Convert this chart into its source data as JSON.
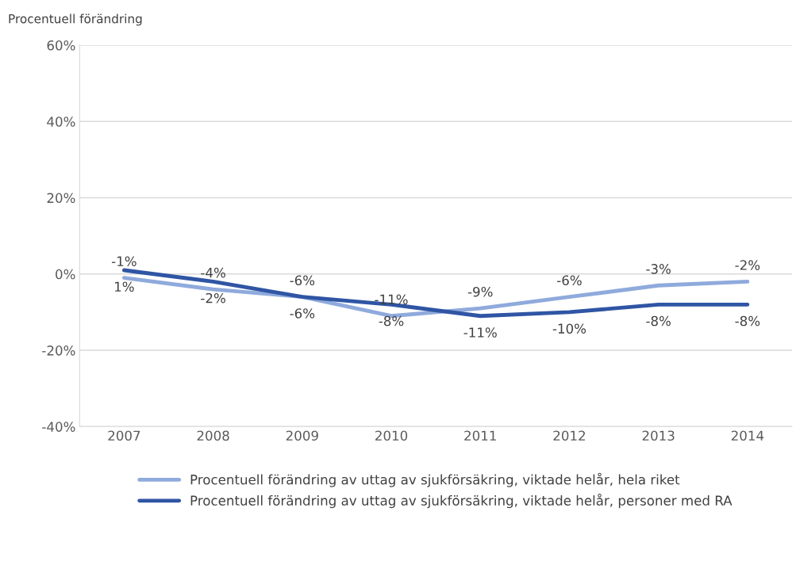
{
  "chart_data": {
    "type": "line",
    "ylabel": "Procentuell förändring",
    "categories": [
      "2007",
      "2008",
      "2009",
      "2010",
      "2011",
      "2012",
      "2013",
      "2014"
    ],
    "series": [
      {
        "name": "Procentuell förändring av uttag av sjukförsäkring, viktade helår, hela riket",
        "color": "#8faadc",
        "values": [
          -1,
          -4,
          -6,
          -11,
          -9,
          -6,
          -3,
          -2
        ],
        "value_labels": [
          "-1%",
          "-4%",
          "-6%",
          "-11%",
          "-9%",
          "-6%",
          "-3%",
          "-2%"
        ]
      },
      {
        "name": "Procentuell förändring av uttag av sjukförsäkring, viktade helår, personer med RA",
        "color": "#2f55a4",
        "values": [
          1,
          -2,
          -6,
          -8,
          -11,
          -10,
          -8,
          -8
        ],
        "value_labels": [
          "1%",
          "-2%",
          "-6%",
          "-8%",
          "-11%",
          "-10%",
          "-8%",
          "-8%"
        ]
      }
    ],
    "ylim": [
      -40,
      60
    ],
    "yticks": [
      {
        "value": -40,
        "label": "-40%"
      },
      {
        "value": -20,
        "label": "-20%"
      },
      {
        "value": 0,
        "label": "0%"
      },
      {
        "value": 20,
        "label": "20%"
      },
      {
        "value": 40,
        "label": "40%"
      },
      {
        "value": 60,
        "label": "60%"
      }
    ],
    "grid": "y",
    "legend": "bottom",
    "marker": "none",
    "line_style": "solid"
  }
}
